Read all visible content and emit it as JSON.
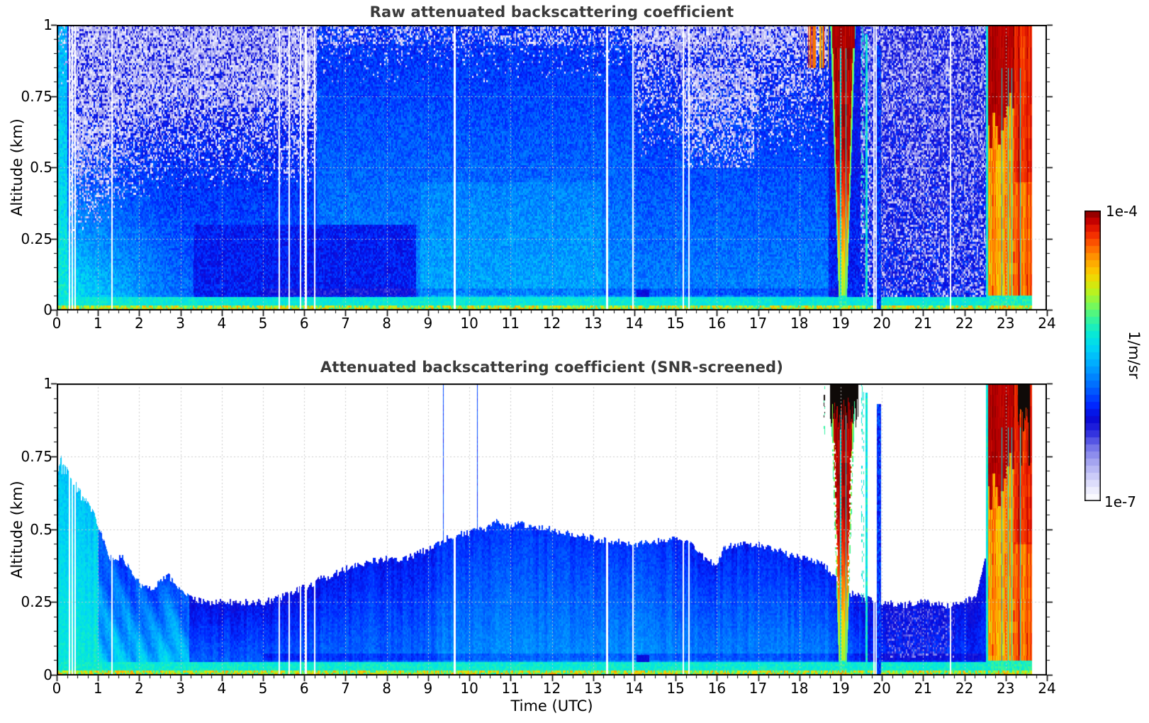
{
  "figure": {
    "panel_titles": [
      "Raw attenuated backscattering coefficient",
      "Attenuated backscattering coefficient (SNR-screened)"
    ],
    "xlabel": "Time (UTC)",
    "ylabel": "Altitude (km)",
    "x_tick_labels": [
      "0",
      "1",
      "2",
      "3",
      "4",
      "5",
      "6",
      "7",
      "8",
      "9",
      "10",
      "11",
      "12",
      "13",
      "14",
      "15",
      "16",
      "17",
      "18",
      "19",
      "20",
      "21",
      "22",
      "23",
      "24"
    ],
    "y_tick_labels": [
      "1",
      "0.75",
      "0.5",
      "0.25",
      "0"
    ],
    "colorbar": {
      "max_label": "1e-4",
      "min_label": "1e-7",
      "unit_label": "1/m/sr"
    }
  },
  "chart_data": {
    "type": "heatmap",
    "panels": [
      {
        "title": "Raw attenuated backscattering coefficient",
        "content": "raw attenuated backscatter including instrument noise (white speckle at high altitude)"
      },
      {
        "title": "Attenuated backscattering coefficient (SNR-screened)",
        "content": "same field with low-SNR pixels screened out (rendered white)"
      }
    ],
    "x": {
      "label": "Time (UTC)",
      "min": 0,
      "max": 24,
      "major_tick_step": 1,
      "minor_tick_step": 0.25,
      "unit": "h"
    },
    "y": {
      "label": "Altitude (km)",
      "min": 0,
      "max": 1,
      "major_ticks": [
        0,
        0.25,
        0.5,
        0.75,
        1
      ],
      "minor_tick_step": 0.05
    },
    "color_scale": {
      "type": "log",
      "min": 1e-07,
      "max": 0.0001,
      "min_label": "1e-7",
      "max_label": "1e-4",
      "unit": "1/m/sr",
      "colormap": "jet-with-white-low, black above max",
      "n_steps": 41,
      "stops": [
        [
          0.0,
          "#ffffff"
        ],
        [
          0.045,
          "#e9e9fd"
        ],
        [
          0.09,
          "#c8c8f8"
        ],
        [
          0.14,
          "#a0a0f0"
        ],
        [
          0.19,
          "#6e6ee8"
        ],
        [
          0.24,
          "#2828de"
        ],
        [
          0.285,
          "#0808d6"
        ],
        [
          0.33,
          "#0028ff"
        ],
        [
          0.4,
          "#006eff"
        ],
        [
          0.47,
          "#00aaff"
        ],
        [
          0.53,
          "#00d7f5"
        ],
        [
          0.58,
          "#0aebd2"
        ],
        [
          0.63,
          "#3cf596"
        ],
        [
          0.68,
          "#82fa50"
        ],
        [
          0.73,
          "#c8f014"
        ],
        [
          0.78,
          "#fad200"
        ],
        [
          0.83,
          "#ffa000"
        ],
        [
          0.88,
          "#ff5f00"
        ],
        [
          0.925,
          "#f02300"
        ],
        [
          0.965,
          "#c30000"
        ],
        [
          1.0,
          "#800000"
        ]
      ],
      "overflow_color": "#0f0a08"
    },
    "grid": {
      "style": "dotted",
      "vertical_every_h": 1,
      "horizontal_every_km": 0.25,
      "color": "#c8c8c8"
    },
    "mixing_layer_height_km": {
      "hours": [
        0.0,
        0.3,
        0.6,
        0.9,
        1.1,
        1.3,
        1.6,
        1.9,
        2.1,
        2.35,
        2.5,
        2.7,
        2.9,
        3.1,
        3.3,
        3.6,
        4.0,
        4.5,
        5.0,
        5.3,
        5.6,
        6.0,
        6.4,
        6.8,
        7.2,
        7.6,
        8.0,
        8.4,
        8.8,
        9.2,
        9.6,
        10.0,
        10.4,
        10.65,
        10.8,
        11.2,
        11.6,
        12.0,
        12.5,
        13.0,
        13.5,
        14.0,
        14.5,
        15.0,
        15.3,
        15.7,
        15.95,
        16.2,
        16.6,
        17.0,
        17.4,
        17.8,
        18.2,
        18.6,
        18.9,
        19.2,
        19.5,
        19.8,
        20.1,
        20.5,
        21.0,
        21.5,
        22.0,
        22.3,
        22.5
      ],
      "height_km": [
        0.7,
        0.66,
        0.6,
        0.55,
        0.47,
        0.4,
        0.4,
        0.33,
        0.3,
        0.3,
        0.33,
        0.34,
        0.31,
        0.28,
        0.26,
        0.25,
        0.25,
        0.25,
        0.25,
        0.26,
        0.28,
        0.3,
        0.33,
        0.35,
        0.38,
        0.39,
        0.4,
        0.4,
        0.42,
        0.45,
        0.48,
        0.49,
        0.5,
        0.53,
        0.51,
        0.52,
        0.51,
        0.5,
        0.48,
        0.47,
        0.46,
        0.45,
        0.46,
        0.47,
        0.46,
        0.4,
        0.38,
        0.44,
        0.45,
        0.45,
        0.43,
        0.41,
        0.4,
        0.38,
        0.33,
        0.28,
        0.27,
        0.25,
        0.25,
        0.24,
        0.25,
        0.24,
        0.25,
        0.28,
        0.4
      ]
    },
    "events": [
      {
        "type": "saturated_precip_column",
        "start_hour": 18.7,
        "end_hour": 19.47,
        "top_km": 1.0,
        "note": "deep cloud/precip, dark red core, black cap in screened panel"
      },
      {
        "type": "cyan_column",
        "hour": 19.62,
        "width_hour": 0.055,
        "top_km": 0.97
      },
      {
        "type": "blue_column",
        "start_hour": 19.87,
        "end_hour": 19.97,
        "top_km": 0.93
      },
      {
        "type": "blue_spike",
        "hour": 9.37,
        "width_hour": 0.018,
        "top_km": 1.0
      },
      {
        "type": "blue_spike",
        "hour": 10.19,
        "width_hour": 0.025,
        "top_km": 1.0
      },
      {
        "type": "blue_spike",
        "hour": 10.68,
        "width_hour": 0.05,
        "top_km": 0.53
      },
      {
        "type": "precip_plume",
        "start_hour": 22.52,
        "end_hour": 23.63,
        "top_km": 1.0,
        "black_cap_start_hour": 23.28,
        "black_cap_end_hour": 23.58
      },
      {
        "type": "dark_blob",
        "start_hour": 14.05,
        "end_hour": 14.35,
        "top_km": 0.07
      }
    ],
    "data_gap_hours": [
      0.3,
      0.37,
      0.44,
      1.33,
      5.39,
      5.63,
      5.9,
      6.03,
      6.24,
      9.64,
      13.33,
      13.96,
      15.18,
      15.31,
      19.8,
      19.85,
      21.65
    ],
    "data_end_hour": 23.63
  }
}
